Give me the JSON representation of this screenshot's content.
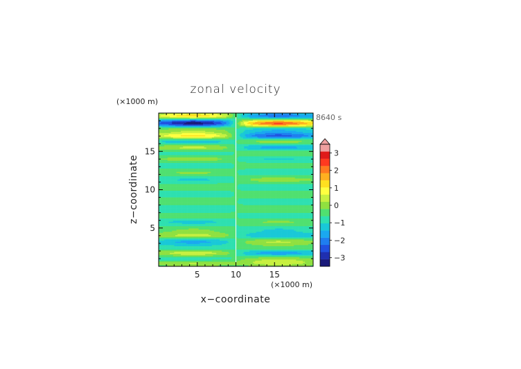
{
  "chart_data": {
    "type": "heatmap",
    "title": "zonal velocity",
    "time_label": "8640 s",
    "xlabel": "x−coordinate",
    "ylabel": "z−coordinate",
    "x_unit": "(×1000 m)",
    "y_unit": "(×1000 m)",
    "xlim": [
      0,
      20
    ],
    "ylim": [
      0,
      20
    ],
    "xticks": [
      5,
      10,
      15
    ],
    "xtick_labels": [
      "5",
      "10",
      "15"
    ],
    "yticks": [
      5,
      10,
      15
    ],
    "ytick_labels": [
      "5",
      "10",
      "15"
    ],
    "colorbar": {
      "min": -3.5,
      "max": 3.5,
      "step": 0.5,
      "extend": "max",
      "ticks": [
        3,
        2,
        1,
        0,
        -1,
        -2,
        -3
      ],
      "tick_labels": [
        "3",
        "2",
        "1",
        "0",
        "−1",
        "−2",
        "−3"
      ],
      "colors": [
        "#1a1a7a",
        "#1f2fb0",
        "#2050e0",
        "#1f7ef0",
        "#1aa8f0",
        "#19c8d8",
        "#2ee0b0",
        "#50e070",
        "#90e040",
        "#c8f040",
        "#ffff40",
        "#ffe020",
        "#ffb020",
        "#ff7a20",
        "#ff3a20",
        "#e01a1a",
        "#f0a0a0"
      ]
    },
    "description_bands": [
      {
        "z": 19.6,
        "left": 2.5,
        "right": -2.0
      },
      {
        "z": 19.0,
        "left": -1.2,
        "right": 0.8
      },
      {
        "z": 18.6,
        "left": -2.6,
        "right": 3.2
      },
      {
        "z": 17.8,
        "left": 0.9,
        "right": -1.0
      },
      {
        "z": 17.0,
        "left": 2.2,
        "right": -2.2
      },
      {
        "z": 16.3,
        "left": -1.0,
        "right": 0.9
      },
      {
        "z": 15.5,
        "left": 1.2,
        "right": -1.3
      },
      {
        "z": 14.8,
        "left": -0.4,
        "right": 0.5
      },
      {
        "z": 14.0,
        "left": 0.8,
        "right": -0.6
      },
      {
        "z": 13.2,
        "left": -0.3,
        "right": 0.4
      },
      {
        "z": 12.2,
        "left": 0.6,
        "right": -0.4
      },
      {
        "z": 11.3,
        "left": -0.6,
        "right": 0.8
      },
      {
        "z": 10.4,
        "left": 0.4,
        "right": -0.3
      },
      {
        "z": 9.4,
        "left": -0.2,
        "right": 0.3
      },
      {
        "z": 8.5,
        "left": 0.3,
        "right": -0.2
      },
      {
        "z": 7.5,
        "left": -0.3,
        "right": 0.3
      },
      {
        "z": 6.5,
        "left": 0.4,
        "right": -0.3
      },
      {
        "z": 5.8,
        "left": -0.7,
        "right": 0.6
      },
      {
        "z": 4.8,
        "left": 0.5,
        "right": -0.5
      },
      {
        "z": 4.0,
        "left": 1.2,
        "right": -1.0
      },
      {
        "z": 3.2,
        "left": -1.2,
        "right": 1.1
      },
      {
        "z": 2.4,
        "left": -0.4,
        "right": 0.4
      },
      {
        "z": 1.7,
        "left": 1.4,
        "right": -1.4
      },
      {
        "z": 1.0,
        "left": -0.6,
        "right": 0.8
      },
      {
        "z": 0.4,
        "left": 1.1,
        "right": 1.2
      }
    ]
  }
}
